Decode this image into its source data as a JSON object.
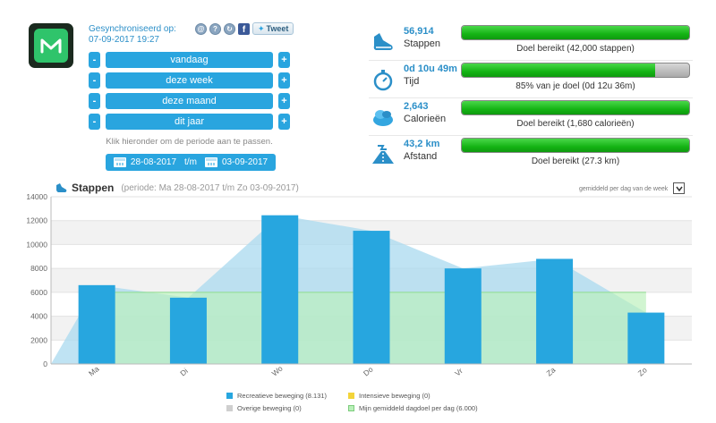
{
  "app": {
    "logo_icon": "m-logo-icon"
  },
  "sync": {
    "label": "Gesynchroniseerd op:",
    "date": "07-09-2017 19:27"
  },
  "share": {
    "tweet_label": "Tweet",
    "facebook_letter": "f"
  },
  "periods": [
    {
      "label": "vandaag"
    },
    {
      "label": "deze week"
    },
    {
      "label": "deze maand"
    },
    {
      "label": "dit jaar"
    }
  ],
  "period_buttons": {
    "minus": "-",
    "plus": "+"
  },
  "hint": "Klik hieronder om de periode aan te passen.",
  "range": {
    "from": "28-08-2017",
    "sep": "t/m",
    "to": "03-09-2017"
  },
  "stats": [
    {
      "value": "56,914",
      "label": "Stappen",
      "bar_text": "Doel bereikt (42,000 stappen)",
      "progress": 1.0,
      "icon": "shoe-icon"
    },
    {
      "value": "0d 10u 49m",
      "label": "Tijd",
      "bar_text": "85% van je doel (0d 12u 36m)",
      "progress": 0.85,
      "icon": "stopwatch-icon"
    },
    {
      "value": "2,643",
      "label": "Calorieën",
      "bar_text": "Doel bereikt (1,680 calorieën)",
      "progress": 1.0,
      "icon": "calories-icon"
    },
    {
      "value": "43,2 km",
      "label": "Afstand",
      "bar_text": "Doel bereikt (27.3 km)",
      "progress": 1.0,
      "icon": "road-icon"
    }
  ],
  "chart_header": {
    "title": "Stappen",
    "subtitle": "(periode: Ma 28-08-2017 t/m Zo 03-09-2017)",
    "avg_label": "gemiddeld per dag van de week"
  },
  "chart_data": {
    "type": "bar",
    "categories": [
      "Ma",
      "Di",
      "Wo",
      "Do",
      "Vr",
      "Za",
      "Zo"
    ],
    "ylim": [
      0,
      14000
    ],
    "yticks": [
      0,
      2000,
      4000,
      6000,
      8000,
      10000,
      12000,
      14000
    ],
    "series": [
      {
        "name": "Recreatieve beweging (8.131)",
        "type": "bar",
        "color": "#27a6df",
        "values": [
          6600,
          5550,
          12450,
          11150,
          8000,
          8800,
          4300
        ]
      },
      {
        "name": "Intensieve beweging (0)",
        "type": "bar",
        "color": "#f3d43a",
        "values": [
          0,
          0,
          0,
          0,
          0,
          0,
          0
        ]
      },
      {
        "name": "Overige beweging (0)",
        "type": "bar",
        "color": "#cfcfcf",
        "values": [
          0,
          0,
          0,
          0,
          0,
          0,
          0
        ]
      },
      {
        "name": "Mijn gemiddeld dagdoel per dag (6.000)",
        "type": "area",
        "color": "#b9f0b9",
        "values": [
          6000,
          6000,
          6000,
          6000,
          6000,
          6000,
          6000
        ]
      }
    ],
    "total_area": {
      "color": "#a9d9ef",
      "values": [
        6600,
        5550,
        12450,
        11150,
        8000,
        8800,
        4300
      ]
    }
  }
}
